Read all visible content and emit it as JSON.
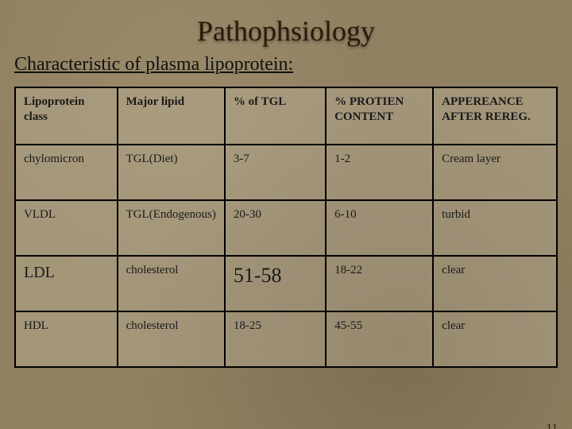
{
  "title": "Pathophsiology",
  "subtitle": "Characteristic of plasma lipoprotein:",
  "page_number": "11",
  "table": {
    "columns": [
      "Lipoprotein class",
      "Major lipid",
      "% of TGL",
      "% PROTIEN CONTENT",
      "APPEREANCE AFTER REREG."
    ],
    "col_widths_pct": [
      19,
      19,
      19,
      20,
      23
    ],
    "rows": [
      {
        "class": "chylomicron",
        "lipid": "TGL(Diet)",
        "tgl": "3-7",
        "protein": "1-2",
        "appearance": "Cream layer"
      },
      {
        "class": "VLDL",
        "lipid": "TGL(Endogenous)",
        "tgl": "20-30",
        "protein": "6-10",
        "appearance": "turbid"
      },
      {
        "class": "LDL",
        "lipid": "cholesterol",
        "tgl": "51-58",
        "protein": "18-22",
        "appearance": "clear"
      },
      {
        "class": "HDL",
        "lipid": "cholesterol",
        "tgl": "18-25",
        "protein": "45-55",
        "appearance": "clear"
      }
    ],
    "header_fontsize": 15,
    "body_fontsize": 15,
    "emph_row_index": 2,
    "emph_label_fontsize": 20,
    "emph_value_fontsize": 26,
    "border_color": "#000000",
    "cell_bg": "rgba(200,190,165,0.35)"
  },
  "style": {
    "title_fontsize": 36,
    "subtitle_fontsize": 24,
    "title_color": "#2a1a0a",
    "background_color": "#908162",
    "font_family": "Georgia"
  }
}
